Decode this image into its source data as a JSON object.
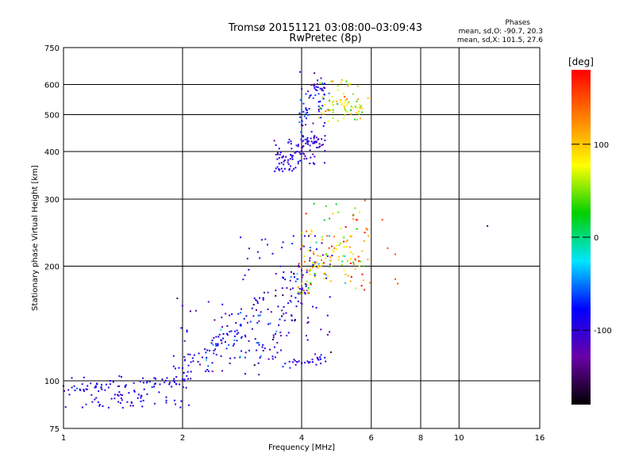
{
  "header": {
    "title_line1": "Tromsø 20151121 03:08:00–03:09:43",
    "title_line2": "RwPretec (8p)",
    "phase_title": "Phases",
    "phase_o": "mean, sd,O: -90.7, 20.3",
    "phase_x": "mean, sd,X: 101.5, 27.6"
  },
  "colorbar": {
    "unit_label": "[deg]",
    "ticks": [
      {
        "value": 100,
        "label": "100"
      },
      {
        "value": 0,
        "label": "0"
      },
      {
        "value": -100,
        "label": "-100"
      }
    ],
    "range": [
      -180,
      180
    ],
    "stops": [
      "#000000",
      "#6a00a8",
      "#0000ff",
      "#00e5ff",
      "#00d000",
      "#ffff00",
      "#ff8000",
      "#ff0000"
    ]
  },
  "chart_data": {
    "type": "scatter",
    "title": "Tromsø 20151121 03:08:00–03:09:43",
    "subtitle": "RwPretec (8p)",
    "xlabel": "Frequency [MHz]",
    "ylabel": "Stationary phase Virtual Height [km]",
    "x_scale": "log",
    "y_scale": "log",
    "xlim": [
      1,
      16
    ],
    "ylim": [
      75,
      750
    ],
    "x_ticks": [
      1,
      2,
      4,
      6,
      8,
      10,
      16
    ],
    "x_tick_labels": [
      "1",
      "2",
      "4",
      "6",
      "8",
      "10",
      "16"
    ],
    "y_ticks": [
      75,
      100,
      200,
      300,
      400,
      500,
      600,
      750
    ],
    "y_tick_labels": [
      "75",
      "100",
      "200",
      "300",
      "400",
      "500",
      "600",
      "750"
    ],
    "grid": true,
    "color_variable": "phase [deg]",
    "clusters": [
      {
        "name": "",
        "points": [
          [
            1.0,
            97,
            -95
          ],
          [
            1.05,
            96,
            -95
          ],
          [
            1.1,
            95,
            -95
          ],
          [
            1.15,
            97,
            -95
          ],
          [
            1.2,
            96,
            -95
          ],
          [
            1.25,
            95,
            -95
          ],
          [
            1.3,
            96,
            -95
          ],
          [
            1.35,
            92,
            -95
          ],
          [
            1.4,
            90,
            -95
          ],
          [
            1.45,
            88,
            -95
          ],
          [
            1.5,
            86,
            -95
          ],
          [
            1.55,
            92,
            -95
          ],
          [
            1.6,
            95,
            -95
          ],
          [
            1.7,
            98,
            -95
          ],
          [
            1.8,
            99,
            -95
          ],
          [
            1.9,
            100,
            -95
          ],
          [
            2.0,
            101,
            -95
          ],
          [
            2.05,
            103,
            -95
          ]
        ],
        "count": 130,
        "x_range": [
          1.0,
          2.1
        ],
        "y_range": [
          85,
          103
        ],
        "phase_mean": -95,
        "phase_sd": 15
      },
      {
        "name": "",
        "points": [
          [
            2.0,
            108,
            -90
          ],
          [
            2.1,
            112,
            -90
          ],
          [
            2.2,
            118,
            -90
          ],
          [
            2.3,
            115,
            -90
          ],
          [
            2.4,
            120,
            -90
          ],
          [
            2.5,
            128,
            -90
          ],
          [
            2.6,
            132,
            -90
          ],
          [
            2.7,
            125,
            -90
          ],
          [
            2.8,
            140,
            -90
          ],
          [
            2.9,
            148,
            -90
          ],
          [
            3.0,
            155,
            -90
          ],
          [
            3.1,
            160,
            -90
          ]
        ],
        "count": 140,
        "x_range": [
          1.9,
          3.2
        ],
        "y_range": [
          100,
          165
        ],
        "phase_mean": -90,
        "phase_sd": 25
      },
      {
        "name": "",
        "points": [
          [
            3.2,
            120,
            -100
          ],
          [
            3.4,
            130,
            -100
          ],
          [
            3.5,
            140,
            -100
          ],
          [
            3.6,
            150,
            -100
          ],
          [
            3.7,
            160,
            -100
          ],
          [
            3.8,
            175,
            -100
          ],
          [
            3.9,
            185,
            -100
          ],
          [
            4.0,
            195,
            -100
          ],
          [
            4.2,
            210,
            -100
          ],
          [
            4.5,
            230,
            -100
          ]
        ],
        "count": 160,
        "x_range": [
          2.8,
          4.8
        ],
        "y_range": [
          110,
          240
        ],
        "phase_mean": -100,
        "phase_sd": 30
      },
      {
        "name": "",
        "points": [
          [
            3.8,
            112,
            -100
          ],
          [
            4.0,
            111,
            -100
          ],
          [
            4.2,
            112,
            -100
          ],
          [
            4.4,
            114,
            -100
          ]
        ],
        "count": 30,
        "x_range": [
          3.5,
          4.6
        ],
        "y_range": [
          108,
          116
        ],
        "phase_mean": -100,
        "phase_sd": 15
      },
      {
        "name": "",
        "points": [
          [
            4.0,
            180,
            90
          ],
          [
            4.2,
            190,
            90
          ],
          [
            4.4,
            200,
            90
          ],
          [
            4.6,
            210,
            90
          ],
          [
            4.8,
            220,
            90
          ],
          [
            5.0,
            230,
            90
          ],
          [
            5.2,
            225,
            90
          ],
          [
            5.4,
            215,
            90
          ],
          [
            5.6,
            200,
            90
          ]
        ],
        "count": 150,
        "x_range": [
          3.9,
          6.0
        ],
        "y_range": [
          170,
          300
        ],
        "phase_mean": 90,
        "phase_sd": 50
      },
      {
        "name": "",
        "points": [
          [
            3.5,
            360,
            -100
          ],
          [
            3.6,
            370,
            -100
          ],
          [
            3.7,
            380,
            -100
          ],
          [
            3.8,
            390,
            -100
          ],
          [
            3.9,
            400,
            -100
          ],
          [
            4.0,
            410,
            -100
          ],
          [
            4.1,
            420,
            -100
          ],
          [
            4.2,
            415,
            -100
          ],
          [
            4.3,
            425,
            -100
          ],
          [
            4.4,
            430,
            -100
          ]
        ],
        "count": 120,
        "x_range": [
          3.4,
          4.6
        ],
        "y_range": [
          355,
          440
        ],
        "phase_mean": -100,
        "phase_sd": 15
      },
      {
        "name": "",
        "points": [
          [
            4.0,
            470,
            -90
          ],
          [
            4.1,
            520,
            -90
          ],
          [
            4.2,
            560,
            -90
          ],
          [
            4.3,
            600,
            -90
          ],
          [
            4.4,
            590,
            -90
          ],
          [
            4.5,
            580,
            -90
          ]
        ],
        "count": 70,
        "x_range": [
          3.95,
          4.7
        ],
        "y_range": [
          450,
          650
        ],
        "phase_mean": -90,
        "phase_sd": 30
      },
      {
        "name": "",
        "points": [
          [
            4.6,
            510,
            80
          ],
          [
            4.8,
            530,
            80
          ],
          [
            5.0,
            540,
            80
          ],
          [
            5.2,
            530,
            80
          ],
          [
            5.4,
            520,
            80
          ],
          [
            5.6,
            525,
            80
          ]
        ],
        "count": 80,
        "x_range": [
          4.4,
          5.9
        ],
        "y_range": [
          480,
          620
        ],
        "phase_mean": 80,
        "phase_sd": 40
      }
    ],
    "outliers": [
      [
        11.8,
        255,
        -140
      ],
      [
        6.9,
        185,
        150
      ],
      [
        7.0,
        180,
        150
      ],
      [
        6.6,
        223,
        150
      ],
      [
        6.4,
        265,
        150
      ],
      [
        6.9,
        215,
        150
      ]
    ]
  }
}
